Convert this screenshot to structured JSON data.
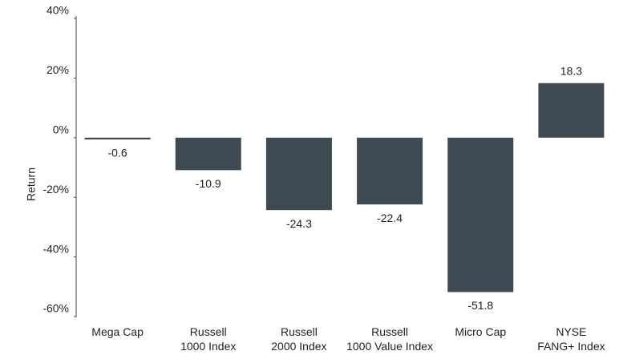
{
  "chart_data": {
    "type": "bar",
    "y_label": "Return",
    "categories": [
      "Mega Cap",
      "Russell\n1000 Index",
      "Russell\n2000 Index",
      "Russell\n1000 Value Index",
      "Micro Cap",
      "NYSE\nFANG+ Index"
    ],
    "values": [
      -0.6,
      -10.9,
      -24.3,
      -22.4,
      -51.8,
      18.3
    ],
    "color": "#3f4b52",
    "ylim": [
      -60,
      40
    ],
    "yticks": [
      {
        "value": -60,
        "label": "-60%"
      },
      {
        "value": -40,
        "label": "-40%"
      },
      {
        "value": -20,
        "label": "-20%"
      },
      {
        "value": 0,
        "label": "0%"
      },
      {
        "value": 20,
        "label": "20%"
      },
      {
        "value": 40,
        "label": "40%"
      }
    ],
    "grid": false
  }
}
